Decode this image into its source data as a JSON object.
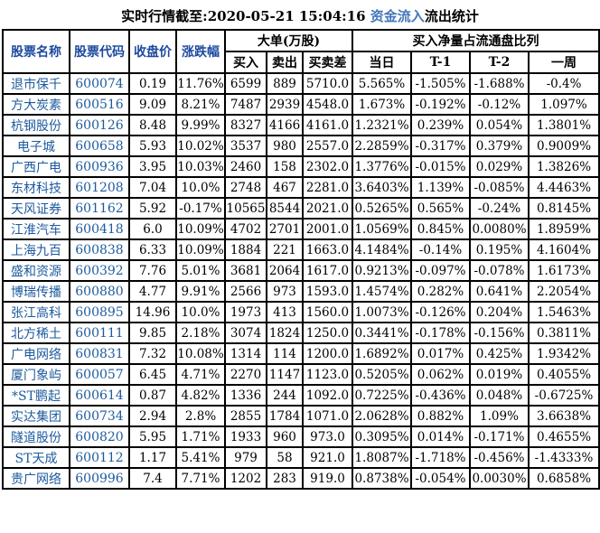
{
  "title": {
    "prefix": "实时行情截至:2020-05-21 15:04:16 ",
    "highlight": "资金流入",
    "suffix": "流出统计"
  },
  "colors": {
    "background": "#ffffff",
    "border": "#000000",
    "text": "#000000",
    "table_blue": "#1d5a9e",
    "header_blue": "#1d4a9e",
    "title_link_blue": "#4377bb"
  },
  "table": {
    "headers": {
      "stock_name": "股票名称",
      "stock_code": "股票代码",
      "close": "收盘价",
      "change": "涨跌幅",
      "big_orders_group": "大单(万股)",
      "buy": "买入",
      "sell": "卖出",
      "buy_sell_diff": "买卖差",
      "net_buy_group": "买入净量占流通盘比列",
      "today": "当日",
      "t1": "T-1",
      "t2": "T-2",
      "week": "一周"
    },
    "rows": [
      [
        "退市保千",
        "600074",
        "0.19",
        "11.76%",
        "6599",
        "889",
        "5710.0",
        "5.565%",
        "-1.505%",
        "-1.688%",
        "-0.4%"
      ],
      [
        "方大炭素",
        "600516",
        "9.09",
        "8.21%",
        "7487",
        "2939",
        "4548.0",
        "1.673%",
        "-0.192%",
        "-0.12%",
        "1.097%"
      ],
      [
        "杭钢股份",
        "600126",
        "8.48",
        "9.99%",
        "8327",
        "4166",
        "4161.0",
        "1.2321%",
        "0.239%",
        "0.054%",
        "1.3801%"
      ],
      [
        "电子城",
        "600658",
        "5.93",
        "10.02%",
        "3537",
        "980",
        "2557.0",
        "2.2859%",
        "-0.317%",
        "0.379%",
        "0.9009%"
      ],
      [
        "广西广电",
        "600936",
        "3.95",
        "10.03%",
        "2460",
        "158",
        "2302.0",
        "1.3776%",
        "-0.015%",
        "0.029%",
        "1.3826%"
      ],
      [
        "东材科技",
        "601208",
        "7.04",
        "10.0%",
        "2748",
        "467",
        "2281.0",
        "3.6403%",
        "1.139%",
        "-0.085%",
        "4.4463%"
      ],
      [
        "天风证券",
        "601162",
        "5.92",
        "-0.17%",
        "10565",
        "8544",
        "2021.0",
        "0.5265%",
        "0.565%",
        "-0.24%",
        "0.8145%"
      ],
      [
        "江淮汽车",
        "600418",
        "6.0",
        "10.09%",
        "4702",
        "2701",
        "2001.0",
        "1.0569%",
        "0.845%",
        "0.0080%",
        "1.8959%"
      ],
      [
        "上海九百",
        "600838",
        "6.33",
        "10.09%",
        "1884",
        "221",
        "1663.0",
        "4.1484%",
        "-0.14%",
        "0.195%",
        "4.1604%"
      ],
      [
        "盛和资源",
        "600392",
        "7.76",
        "5.01%",
        "3681",
        "2064",
        "1617.0",
        "0.9213%",
        "-0.097%",
        "-0.078%",
        "1.6173%"
      ],
      [
        "博瑞传播",
        "600880",
        "4.77",
        "9.91%",
        "2566",
        "973",
        "1593.0",
        "1.4574%",
        "0.282%",
        "0.641%",
        "2.2054%"
      ],
      [
        "张江高科",
        "600895",
        "14.96",
        "10.0%",
        "1973",
        "413",
        "1560.0",
        "1.0073%",
        "-0.126%",
        "0.204%",
        "1.5463%"
      ],
      [
        "北方稀土",
        "600111",
        "9.85",
        "2.18%",
        "3074",
        "1824",
        "1250.0",
        "0.3441%",
        "-0.178%",
        "-0.156%",
        "0.3811%"
      ],
      [
        "广电网络",
        "600831",
        "7.32",
        "10.08%",
        "1314",
        "114",
        "1200.0",
        "1.6892%",
        "0.017%",
        "0.425%",
        "1.9342%"
      ],
      [
        "厦门象屿",
        "600057",
        "6.45",
        "4.71%",
        "2270",
        "1147",
        "1123.0",
        "0.5205%",
        "0.062%",
        "0.019%",
        "0.4055%"
      ],
      [
        "*ST鹏起",
        "600614",
        "0.87",
        "4.82%",
        "1336",
        "244",
        "1092.0",
        "0.7225%",
        "-0.436%",
        "0.048%",
        "-0.6725%"
      ],
      [
        "实达集团",
        "600734",
        "2.94",
        "2.8%",
        "2855",
        "1784",
        "1071.0",
        "2.0628%",
        "0.882%",
        "1.09%",
        "3.6638%"
      ],
      [
        "隧道股份",
        "600820",
        "5.95",
        "1.71%",
        "1933",
        "960",
        "973.0",
        "0.3095%",
        "0.014%",
        "-0.171%",
        "0.4655%"
      ],
      [
        "ST天成",
        "600112",
        "1.17",
        "5.41%",
        "979",
        "58",
        "921.0",
        "1.8087%",
        "-1.718%",
        "-0.456%",
        "-1.4333%"
      ],
      [
        "贵广网络",
        "600996",
        "7.4",
        "7.71%",
        "1202",
        "283",
        "919.0",
        "0.8738%",
        "-0.054%",
        "0.0030%",
        "0.6858%"
      ]
    ]
  }
}
